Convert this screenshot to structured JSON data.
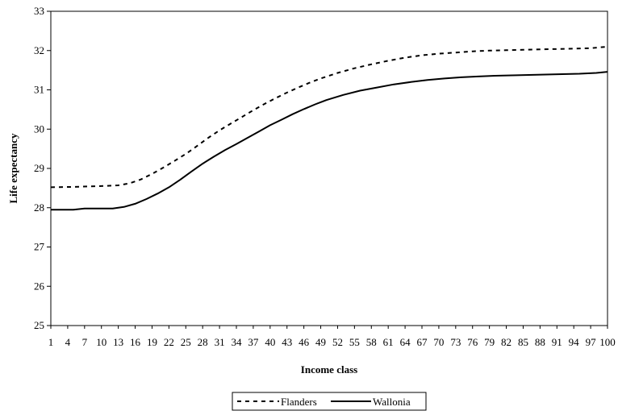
{
  "chart_data": {
    "type": "line",
    "xlabel": "Income class",
    "ylabel": "Life expectancy",
    "ylim": [
      25,
      33
    ],
    "xlim": [
      1,
      100
    ],
    "yticks": [
      25,
      26,
      27,
      28,
      29,
      30,
      31,
      32,
      33
    ],
    "xticks": [
      1,
      4,
      7,
      10,
      13,
      16,
      19,
      22,
      25,
      28,
      31,
      34,
      37,
      40,
      43,
      46,
      49,
      52,
      55,
      58,
      61,
      64,
      67,
      70,
      73,
      76,
      79,
      82,
      85,
      88,
      91,
      94,
      97,
      100
    ],
    "grid": false,
    "legend_position": "bottom-center",
    "series": [
      {
        "name": "Flanders",
        "line_style": "dashed",
        "color": "#000000",
        "x": [
          1,
          5,
          10,
          13,
          15,
          17,
          19,
          21,
          23,
          25,
          27,
          29,
          31,
          33,
          35,
          37,
          39,
          41,
          43,
          45,
          47,
          49,
          52,
          55,
          58,
          61,
          64,
          67,
          70,
          73,
          76,
          79,
          82,
          85,
          88,
          91,
          94,
          97,
          100
        ],
        "y": [
          28.52,
          28.53,
          28.55,
          28.57,
          28.62,
          28.72,
          28.86,
          29.02,
          29.19,
          29.37,
          29.57,
          29.78,
          29.97,
          30.14,
          30.31,
          30.48,
          30.64,
          30.79,
          30.93,
          31.06,
          31.18,
          31.29,
          31.43,
          31.55,
          31.65,
          31.74,
          31.82,
          31.88,
          31.92,
          31.95,
          31.98,
          32.0,
          32.01,
          32.02,
          32.03,
          32.04,
          32.05,
          32.06,
          32.1
        ]
      },
      {
        "name": "Wallonia",
        "line_style": "solid",
        "color": "#000000",
        "x": [
          1,
          5,
          7,
          10,
          12,
          14,
          16,
          18,
          20,
          22,
          24,
          26,
          28,
          30,
          32,
          34,
          36,
          38,
          40,
          42,
          44,
          46,
          48,
          50,
          53,
          56,
          59,
          62,
          65,
          68,
          71,
          74,
          77,
          80,
          83,
          86,
          89,
          92,
          95,
          98,
          100
        ],
        "y": [
          27.95,
          27.95,
          27.98,
          27.98,
          27.98,
          28.02,
          28.1,
          28.22,
          28.36,
          28.52,
          28.71,
          28.92,
          29.12,
          29.3,
          29.47,
          29.62,
          29.78,
          29.94,
          30.1,
          30.24,
          30.38,
          30.51,
          30.63,
          30.74,
          30.87,
          30.98,
          31.06,
          31.14,
          31.2,
          31.25,
          31.29,
          31.32,
          31.34,
          31.36,
          31.37,
          31.38,
          31.39,
          31.4,
          31.41,
          31.43,
          31.46
        ]
      }
    ]
  }
}
